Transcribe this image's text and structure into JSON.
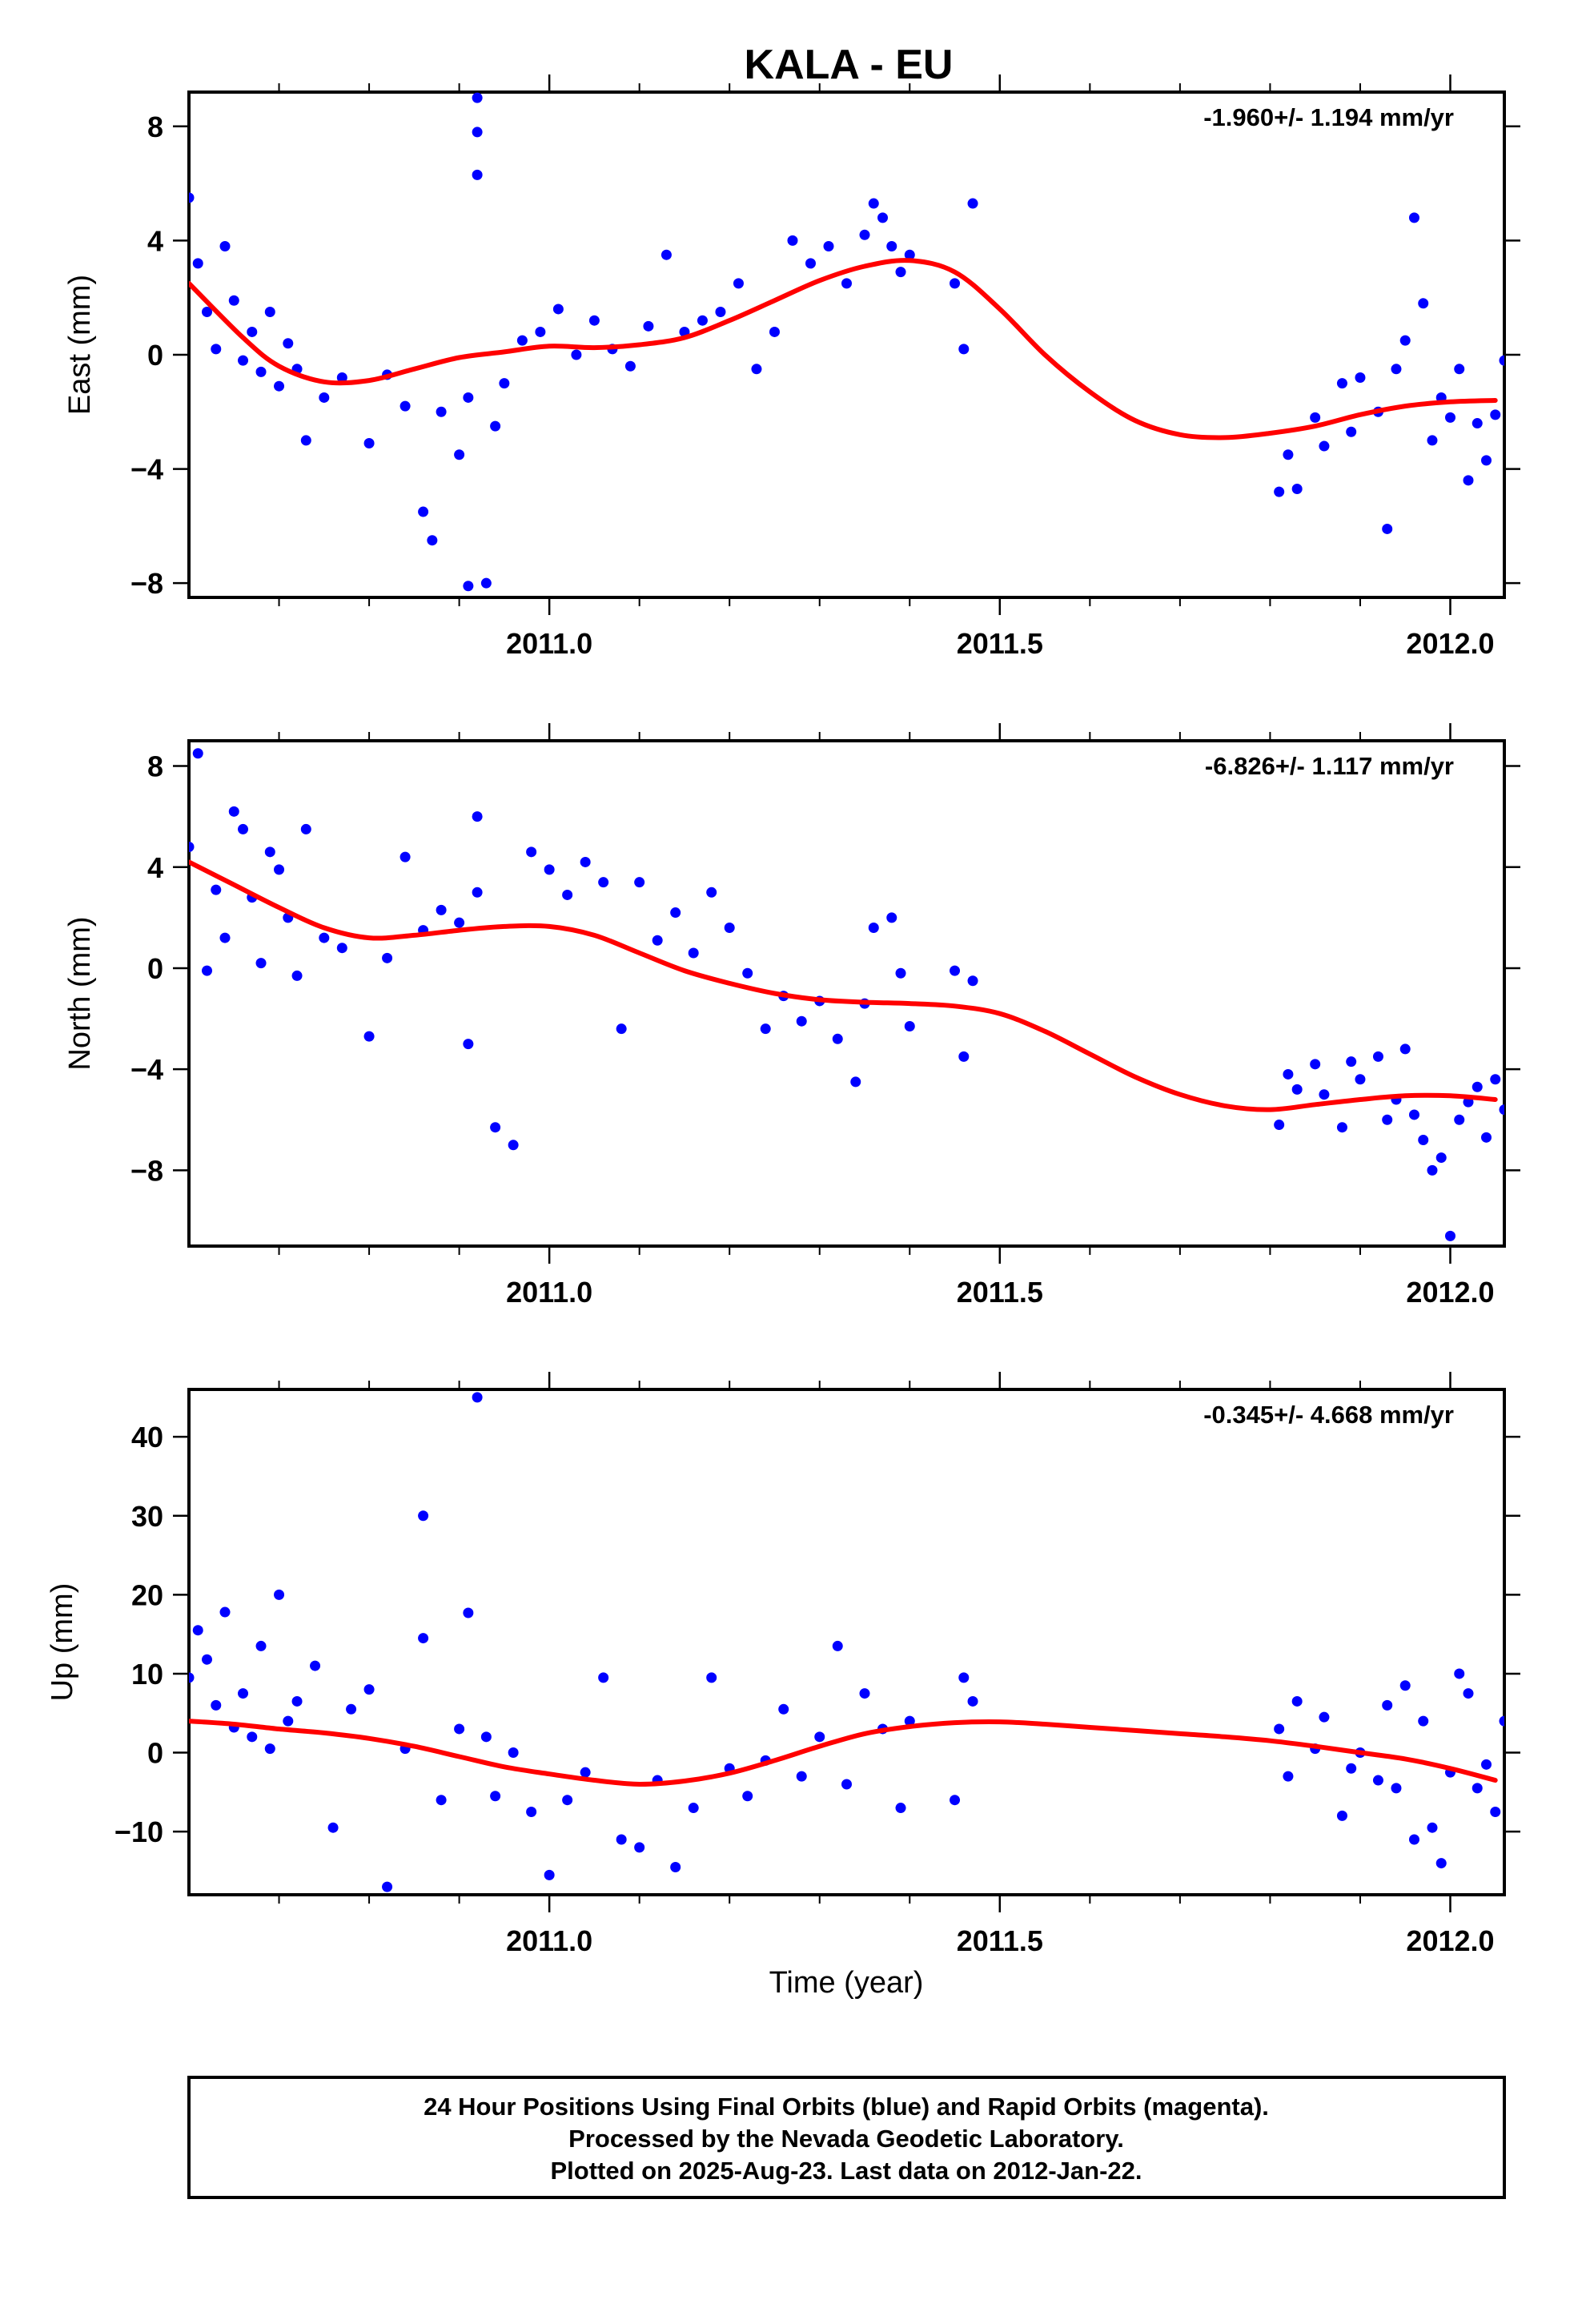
{
  "title": "KALA - EU",
  "xlabel": "Time (year)",
  "footer": {
    "line1": "24 Hour Positions Using Final Orbits (blue) and Rapid Orbits (magenta).",
    "line2": "Processed by the Nevada Geodetic Laboratory.",
    "line3": "Plotted on 2025-Aug-23. Last data on 2012-Jan-22."
  },
  "colors": {
    "points": "#0000ff",
    "fit": "#ff0000",
    "axes": "#000000"
  },
  "chart_data": [
    {
      "type": "scatter",
      "ylabel": "East (mm)",
      "rate": "-1.960+/- 1.194 mm/yr",
      "xlim": [
        2010.6,
        2012.06
      ],
      "ylim": [
        -8.5,
        9.2
      ],
      "xticks": [
        2011.0,
        2011.5,
        2012.0
      ],
      "xtick_labels": [
        "2011.0",
        "2011.5",
        "2012.0"
      ],
      "yticks": [
        -8,
        -4,
        0,
        4,
        8
      ],
      "ytick_labels": [
        "−8",
        "−4",
        "0",
        "4",
        "8"
      ],
      "fit": {
        "x": [
          2010.6,
          2010.66,
          2010.7,
          2010.75,
          2010.8,
          2010.85,
          2010.9,
          2010.95,
          2011.0,
          2011.05,
          2011.1,
          2011.15,
          2011.2,
          2011.25,
          2011.3,
          2011.35,
          2011.4,
          2011.45,
          2011.5,
          2011.55,
          2011.6,
          2011.65,
          2011.7,
          2011.75,
          2011.8,
          2011.85,
          2011.9,
          2011.95,
          2012.0,
          2012.05
        ],
        "y": [
          2.5,
          0.6,
          -0.4,
          -0.95,
          -0.9,
          -0.5,
          -0.1,
          0.1,
          0.3,
          0.25,
          0.35,
          0.6,
          1.2,
          1.9,
          2.6,
          3.1,
          3.3,
          2.9,
          1.6,
          0.0,
          -1.3,
          -2.3,
          -2.8,
          -2.9,
          -2.75,
          -2.5,
          -2.1,
          -1.8,
          -1.65,
          -1.6
        ]
      },
      "points": {
        "x": [
          2010.6,
          2010.61,
          2010.62,
          2010.63,
          2010.64,
          2010.65,
          2010.66,
          2010.67,
          2010.68,
          2010.69,
          2010.7,
          2010.71,
          2010.72,
          2010.73,
          2010.75,
          2010.77,
          2010.8,
          2010.82,
          2010.84,
          2010.86,
          2010.87,
          2010.88,
          2010.9,
          2010.91,
          2010.91,
          2010.92,
          2010.92,
          2010.92,
          2010.93,
          2010.94,
          2010.95,
          2010.97,
          2010.99,
          2011.01,
          2011.03,
          2011.05,
          2011.07,
          2011.09,
          2011.11,
          2011.13,
          2011.15,
          2011.17,
          2011.19,
          2011.21,
          2011.23,
          2011.25,
          2011.27,
          2011.29,
          2011.31,
          2011.33,
          2011.35,
          2011.36,
          2011.37,
          2011.38,
          2011.39,
          2011.4,
          2011.45,
          2011.46,
          2011.47,
          2011.81,
          2011.82,
          2011.83,
          2011.85,
          2011.86,
          2011.88,
          2011.89,
          2011.9,
          2011.92,
          2011.93,
          2011.94,
          2011.95,
          2011.96,
          2011.97,
          2011.98,
          2011.99,
          2012.0,
          2012.01,
          2012.02,
          2012.03,
          2012.04,
          2012.05,
          2012.06
        ],
        "y": [
          5.5,
          3.2,
          1.5,
          0.2,
          3.8,
          1.9,
          -0.2,
          0.8,
          -0.6,
          1.5,
          -1.1,
          0.4,
          -0.5,
          -3.0,
          -1.5,
          -0.8,
          -3.1,
          -0.7,
          -1.8,
          -5.5,
          -6.5,
          -2.0,
          -3.5,
          -8.1,
          -1.5,
          6.3,
          7.8,
          9.0,
          -8.0,
          -2.5,
          -1.0,
          0.5,
          0.8,
          1.6,
          0.0,
          1.2,
          0.2,
          -0.4,
          1.0,
          3.5,
          0.8,
          1.2,
          1.5,
          2.5,
          -0.5,
          0.8,
          4.0,
          3.2,
          3.8,
          2.5,
          4.2,
          5.3,
          4.8,
          3.8,
          2.9,
          3.5,
          2.5,
          0.2,
          5.3,
          -4.8,
          -3.5,
          -4.7,
          -2.2,
          -3.2,
          -1.0,
          -2.7,
          -0.8,
          -2.0,
          -6.1,
          -0.5,
          0.5,
          4.8,
          1.8,
          -3.0,
          -1.5,
          -2.2,
          -0.5,
          -4.4,
          -2.4,
          -3.7,
          -2.1,
          -0.2
        ]
      }
    },
    {
      "type": "scatter",
      "ylabel": "North (mm)",
      "rate": "-6.826+/- 1.117 mm/yr",
      "xlim": [
        2010.6,
        2012.06
      ],
      "ylim": [
        -11.0,
        9.0
      ],
      "xticks": [
        2011.0,
        2011.5,
        2012.0
      ],
      "xtick_labels": [
        "2011.0",
        "2011.5",
        "2012.0"
      ],
      "yticks": [
        -8,
        -4,
        0,
        4,
        8
      ],
      "ytick_labels": [
        "−8",
        "−4",
        "0",
        "4",
        "8"
      ],
      "fit": {
        "x": [
          2010.6,
          2010.65,
          2010.7,
          2010.75,
          2010.8,
          2010.85,
          2010.9,
          2010.95,
          2011.0,
          2011.05,
          2011.1,
          2011.15,
          2011.2,
          2011.25,
          2011.3,
          2011.35,
          2011.4,
          2011.45,
          2011.5,
          2011.55,
          2011.6,
          2011.65,
          2011.7,
          2011.75,
          2011.8,
          2011.85,
          2011.9,
          2011.95,
          2012.0,
          2012.05
        ],
        "y": [
          4.2,
          3.3,
          2.4,
          1.6,
          1.2,
          1.3,
          1.5,
          1.65,
          1.65,
          1.3,
          0.6,
          -0.1,
          -0.6,
          -1.0,
          -1.25,
          -1.35,
          -1.4,
          -1.5,
          -1.8,
          -2.5,
          -3.4,
          -4.3,
          -5.0,
          -5.45,
          -5.6,
          -5.4,
          -5.2,
          -5.05,
          -5.05,
          -5.2
        ]
      },
      "points": {
        "x": [
          2010.6,
          2010.61,
          2010.62,
          2010.63,
          2010.64,
          2010.65,
          2010.66,
          2010.67,
          2010.68,
          2010.69,
          2010.7,
          2010.71,
          2010.72,
          2010.73,
          2010.75,
          2010.77,
          2010.8,
          2010.82,
          2010.84,
          2010.86,
          2010.88,
          2010.9,
          2010.91,
          2010.92,
          2010.92,
          2010.94,
          2010.96,
          2010.98,
          2011.0,
          2011.02,
          2011.04,
          2011.06,
          2011.08,
          2011.1,
          2011.12,
          2011.14,
          2011.16,
          2011.18,
          2011.2,
          2011.22,
          2011.24,
          2011.26,
          2011.28,
          2011.3,
          2011.32,
          2011.34,
          2011.35,
          2011.36,
          2011.38,
          2011.39,
          2011.4,
          2011.45,
          2011.46,
          2011.47,
          2011.81,
          2011.82,
          2011.83,
          2011.85,
          2011.86,
          2011.88,
          2011.89,
          2011.9,
          2011.92,
          2011.93,
          2011.94,
          2011.95,
          2011.96,
          2011.97,
          2011.98,
          2011.99,
          2012.0,
          2012.01,
          2012.02,
          2012.03,
          2012.04,
          2012.05,
          2012.06
        ],
        "y": [
          4.8,
          8.5,
          -0.1,
          3.1,
          1.2,
          6.2,
          5.5,
          2.8,
          0.2,
          4.6,
          3.9,
          2.0,
          -0.3,
          5.5,
          1.2,
          0.8,
          -2.7,
          0.4,
          4.4,
          1.5,
          2.3,
          1.8,
          -3.0,
          6.0,
          3.0,
          -6.3,
          -7.0,
          4.6,
          3.9,
          2.9,
          4.2,
          3.4,
          -2.4,
          3.4,
          1.1,
          2.2,
          0.6,
          3.0,
          1.6,
          -0.2,
          -2.4,
          -1.1,
          -2.1,
          -1.3,
          -2.8,
          -4.5,
          -1.4,
          1.6,
          2.0,
          -0.2,
          -2.3,
          -0.1,
          -3.5,
          -0.5,
          -6.2,
          -4.2,
          -4.8,
          -3.8,
          -5.0,
          -6.3,
          -3.7,
          -4.4,
          -3.5,
          -6.0,
          -5.2,
          -3.2,
          -5.8,
          -6.8,
          -8.0,
          -7.5,
          -10.6,
          -6.0,
          -5.3,
          -4.7,
          -6.7,
          -4.4,
          -5.6
        ]
      }
    },
    {
      "type": "scatter",
      "ylabel": "Up (mm)",
      "rate": "-0.345+/- 4.668 mm/yr",
      "xlim": [
        2010.6,
        2012.06
      ],
      "ylim": [
        -18.0,
        46.0
      ],
      "xticks": [
        2011.0,
        2011.5,
        2012.0
      ],
      "xtick_labels": [
        "2011.0",
        "2011.5",
        "2012.0"
      ],
      "yticks": [
        -10,
        0,
        10,
        20,
        30,
        40
      ],
      "ytick_labels": [
        "−10",
        "0",
        "10",
        "20",
        "30",
        "40"
      ],
      "fit": {
        "x": [
          2010.6,
          2010.65,
          2010.7,
          2010.75,
          2010.8,
          2010.85,
          2010.9,
          2010.95,
          2011.0,
          2011.05,
          2011.1,
          2011.15,
          2011.2,
          2011.25,
          2011.3,
          2011.35,
          2011.4,
          2011.45,
          2011.5,
          2011.55,
          2011.6,
          2011.65,
          2011.7,
          2011.75,
          2011.8,
          2011.85,
          2011.9,
          2011.95,
          2012.0,
          2012.05
        ],
        "y": [
          4.0,
          3.6,
          3.0,
          2.5,
          1.8,
          0.8,
          -0.5,
          -1.8,
          -2.7,
          -3.5,
          -4.0,
          -3.6,
          -2.6,
          -1.0,
          0.8,
          2.4,
          3.3,
          3.8,
          3.9,
          3.6,
          3.2,
          2.8,
          2.4,
          2.0,
          1.5,
          0.8,
          0.0,
          -0.8,
          -2.0,
          -3.5
        ]
      },
      "points": {
        "x": [
          2010.6,
          2010.61,
          2010.62,
          2010.63,
          2010.64,
          2010.65,
          2010.66,
          2010.67,
          2010.68,
          2010.69,
          2010.7,
          2010.71,
          2010.72,
          2010.74,
          2010.76,
          2010.78,
          2010.8,
          2010.82,
          2010.84,
          2010.86,
          2010.86,
          2010.88,
          2010.9,
          2010.91,
          2010.92,
          2010.93,
          2010.94,
          2010.96,
          2010.98,
          2011.0,
          2011.02,
          2011.04,
          2011.06,
          2011.08,
          2011.1,
          2011.12,
          2011.14,
          2011.16,
          2011.18,
          2011.2,
          2011.22,
          2011.24,
          2011.26,
          2011.28,
          2011.3,
          2011.32,
          2011.33,
          2011.35,
          2011.37,
          2011.39,
          2011.4,
          2011.45,
          2011.46,
          2011.47,
          2011.81,
          2011.82,
          2011.83,
          2011.85,
          2011.86,
          2011.88,
          2011.89,
          2011.9,
          2011.92,
          2011.93,
          2011.94,
          2011.95,
          2011.96,
          2011.97,
          2011.98,
          2011.99,
          2012.0,
          2012.01,
          2012.02,
          2012.03,
          2012.04,
          2012.05,
          2012.06
        ],
        "y": [
          9.5,
          15.5,
          11.8,
          6.0,
          17.8,
          3.2,
          7.5,
          2.0,
          13.5,
          0.5,
          20.0,
          4.0,
          6.5,
          11.0,
          -9.5,
          5.5,
          8.0,
          -17.0,
          0.5,
          30.0,
          14.5,
          -6.0,
          3.0,
          17.7,
          45.0,
          2.0,
          -5.5,
          0.0,
          -7.5,
          -15.5,
          -6.0,
          -2.5,
          9.5,
          -11.0,
          -12.0,
          -3.5,
          -14.5,
          -7.0,
          9.5,
          -2.0,
          -5.5,
          -1.0,
          5.5,
          -3.0,
          2.0,
          13.5,
          -4.0,
          7.5,
          3.0,
          -7.0,
          4.0,
          -6.0,
          9.5,
          6.5,
          3.0,
          -3.0,
          6.5,
          0.5,
          4.5,
          -8.0,
          -2.0,
          0.0,
          -3.5,
          6.0,
          -4.5,
          8.5,
          -11.0,
          4.0,
          -9.5,
          -14.0,
          -2.5,
          10.0,
          7.5,
          -4.5,
          -1.5,
          -7.5,
          4.0
        ]
      }
    }
  ]
}
